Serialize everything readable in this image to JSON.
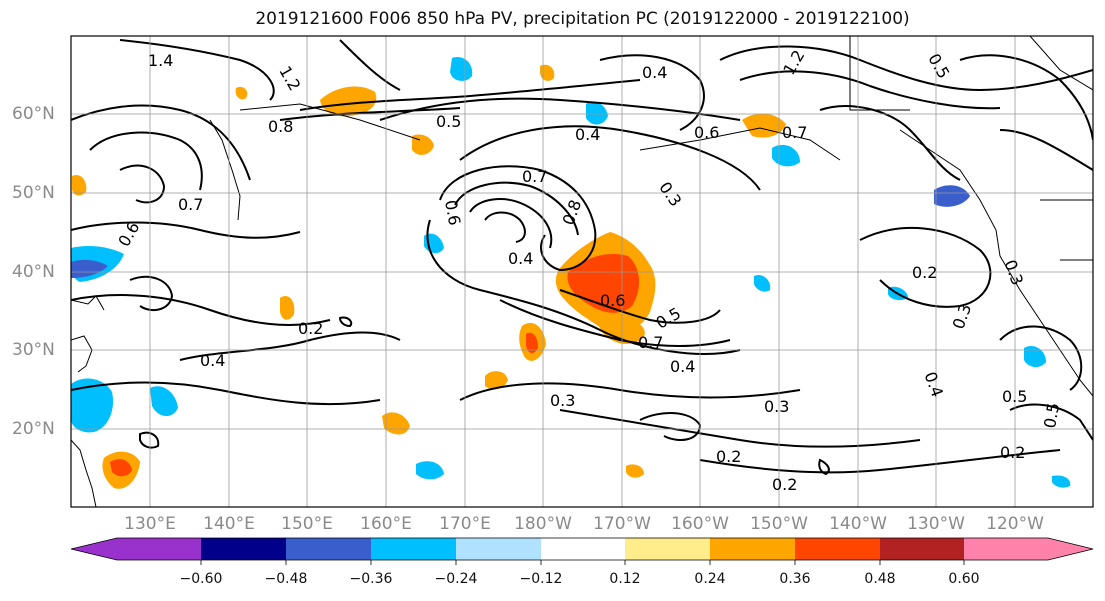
{
  "title": "2019121600 F006 850 hPa PV, precipitation PC (2019122000 - 2019122100)",
  "map": {
    "lat_labels": [
      "60°N",
      "50°N",
      "40°N",
      "30°N",
      "20°N"
    ],
    "lon_labels": [
      "130°E",
      "140°E",
      "150°E",
      "160°E",
      "170°E",
      "180°W",
      "170°W",
      "160°W",
      "150°W",
      "140°W",
      "130°W",
      "120°W"
    ],
    "contour_labels": [
      "1.4",
      "1.2",
      "0.8",
      "0.5",
      "0.4",
      "0.4",
      "0.7",
      "0.3",
      "0.6",
      "0.7",
      "0.8",
      "0.6",
      "0.4",
      "0.5",
      "0.6",
      "0.7",
      "0.4",
      "0.3",
      "0.3",
      "0.2",
      "0.2",
      "0.3",
      "0.2",
      "0.5",
      "0.2",
      "0.3",
      "0.4",
      "0.5",
      "0.7",
      "0.6",
      "0.2",
      "0.4",
      "0.5",
      "1.2"
    ],
    "land_color": "#ffffff",
    "contour_color": "#000000",
    "grid_color": "#999999"
  },
  "colorbar": {
    "ticks": [
      "−0.60",
      "−0.48",
      "−0.36",
      "−0.24",
      "−0.12",
      "0.12",
      "0.24",
      "0.36",
      "0.48",
      "0.60"
    ],
    "colors": [
      "#9932cc",
      "#00008b",
      "#3a5fcd",
      "#00bfff",
      "#b0e2ff",
      "#ffffff",
      "#ffec8b",
      "#ffa500",
      "#ff4500",
      "#b22222",
      "#ff82ab"
    ]
  }
}
